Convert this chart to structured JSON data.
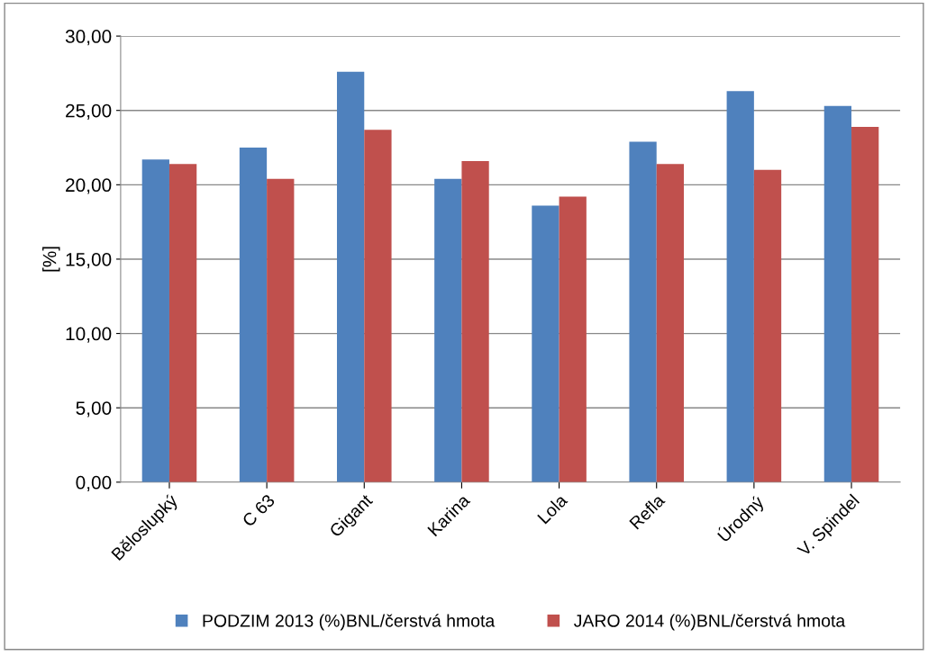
{
  "chart_data": {
    "type": "bar",
    "ylabel": "[%]",
    "categories": [
      "Běloslupký",
      "C 63",
      "Gigant",
      "Karina",
      "Lola",
      "Refla",
      "Úrodný",
      "V. Spindel"
    ],
    "series": [
      {
        "name": "PODZIM 2013 (%)BNL/čerstvá hmota",
        "color": "#4f81bd",
        "values": [
          21.7,
          22.5,
          27.6,
          20.4,
          18.6,
          22.9,
          26.3,
          25.3
        ]
      },
      {
        "name": "JARO 2014 (%)BNL/čerstvá hmota",
        "color": "#c0504d",
        "values": [
          21.4,
          20.4,
          23.7,
          21.6,
          19.2,
          21.4,
          21.0,
          23.9
        ]
      }
    ],
    "ylim": [
      0,
      30
    ],
    "yticks": [
      {
        "value": 0,
        "label": "0,00"
      },
      {
        "value": 5,
        "label": "5,00"
      },
      {
        "value": 10,
        "label": "10,00"
      },
      {
        "value": 15,
        "label": "15,00"
      },
      {
        "value": 20,
        "label": "20,00"
      },
      {
        "value": 25,
        "label": "25,00"
      },
      {
        "value": 30,
        "label": "30,00"
      }
    ],
    "grid": "y",
    "legend": "bottom"
  }
}
